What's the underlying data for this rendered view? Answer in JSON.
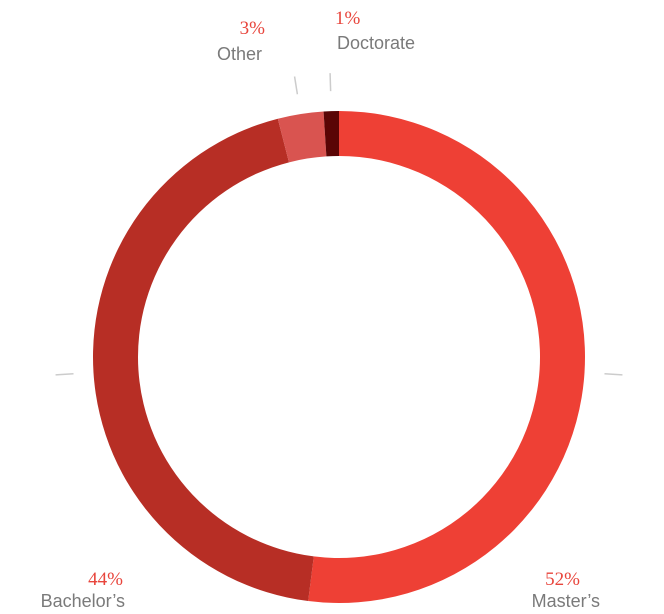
{
  "chart_data": {
    "type": "pie",
    "variant": "donut",
    "title": "",
    "categories": [
      "Master’s",
      "Bachelor’s",
      "Other",
      "Doctorate"
    ],
    "values": [
      52,
      44,
      3,
      1
    ],
    "value_labels": [
      "52%",
      "44%",
      "3%",
      "1%"
    ],
    "colors": [
      "#ee4035",
      "#b72e25",
      "#d95450",
      "#5a0505"
    ],
    "start_angle_deg": 0,
    "direction": "clockwise",
    "legend": "none"
  }
}
